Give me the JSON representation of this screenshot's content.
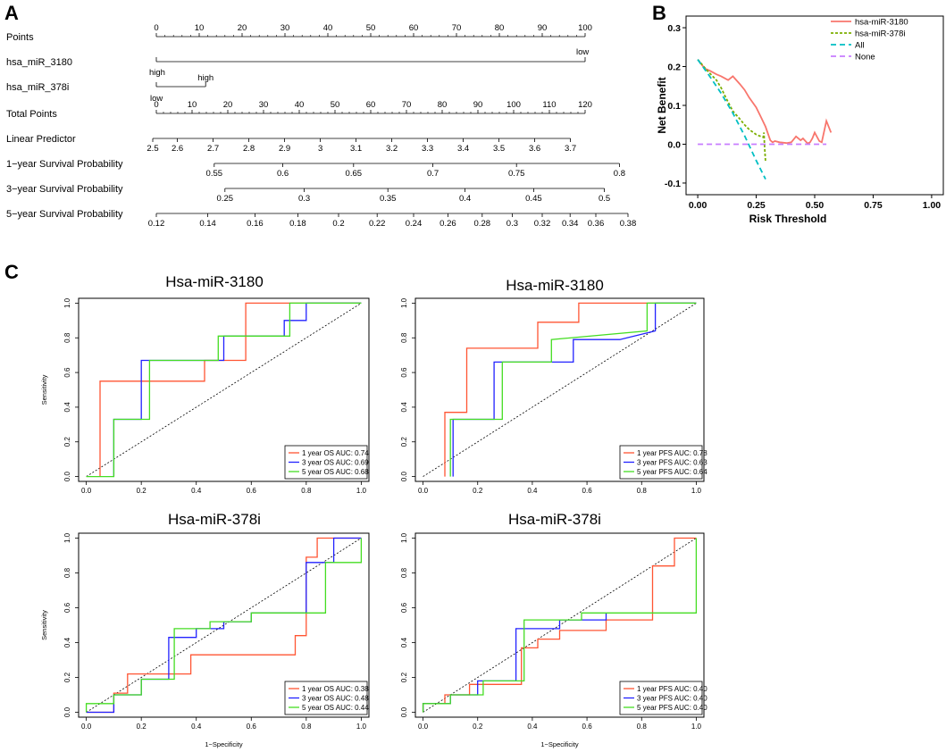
{
  "panels": {
    "a": "A",
    "b": "B",
    "c": "C"
  },
  "chart_data": [
    {
      "type": "nomogram",
      "panel": "A",
      "rows": [
        {
          "label": "Points",
          "min": 0,
          "max": 100,
          "ticks": [
            {
              "v": 0,
              "t": "0"
            },
            {
              "v": 10,
              "t": "10"
            },
            {
              "v": 20,
              "t": "20"
            },
            {
              "v": 30,
              "t": "30"
            },
            {
              "v": 40,
              "t": "40"
            },
            {
              "v": 50,
              "t": "50"
            },
            {
              "v": 60,
              "t": "60"
            },
            {
              "v": 70,
              "t": "70"
            },
            {
              "v": 80,
              "t": "80"
            },
            {
              "v": 90,
              "t": "90"
            },
            {
              "v": 100,
              "t": "100"
            }
          ]
        },
        {
          "label": "hsa_miR_3180",
          "type": "factor",
          "levels": [
            {
              "v": 0,
              "t": "high"
            },
            {
              "v": 100,
              "t": "low"
            }
          ]
        },
        {
          "label": "hsa_miR_378i",
          "type": "factor",
          "levels": [
            {
              "v": 0,
              "t": "low"
            },
            {
              "v": 11.5,
              "t": "high"
            }
          ]
        },
        {
          "label": "Total Points",
          "min": 0,
          "max": 120,
          "ticks": [
            {
              "v": 0,
              "t": "0"
            },
            {
              "v": 10,
              "t": "10"
            },
            {
              "v": 20,
              "t": "20"
            },
            {
              "v": 30,
              "t": "30"
            },
            {
              "v": 40,
              "t": "40"
            },
            {
              "v": 50,
              "t": "50"
            },
            {
              "v": 60,
              "t": "60"
            },
            {
              "v": 70,
              "t": "70"
            },
            {
              "v": 80,
              "t": "80"
            },
            {
              "v": 90,
              "t": "90"
            },
            {
              "v": 100,
              "t": "100"
            },
            {
              "v": 110,
              "t": "110"
            },
            {
              "v": 120,
              "t": "120"
            }
          ]
        },
        {
          "label": "Linear Predictor",
          "ticks": [
            {
              "v": -1,
              "t": "2.5"
            },
            {
              "v": 5.9,
              "t": "2.6"
            },
            {
              "v": 15.9,
              "t": "2.7"
            },
            {
              "v": 25.9,
              "t": "2.8"
            },
            {
              "v": 35.9,
              "t": "2.9"
            },
            {
              "v": 45.9,
              "t": "3"
            },
            {
              "v": 55.9,
              "t": "3.1"
            },
            {
              "v": 65.9,
              "t": "3.2"
            },
            {
              "v": 75.9,
              "t": "3.3"
            },
            {
              "v": 85.9,
              "t": "3.4"
            },
            {
              "v": 95.9,
              "t": "3.5"
            },
            {
              "v": 105.9,
              "t": "3.6"
            },
            {
              "v": 115.9,
              "t": "3.7"
            }
          ]
        },
        {
          "label": "1−year Survival Probability",
          "ticks": [
            {
              "v": 13.5,
              "t": "0.55"
            },
            {
              "v": 29.5,
              "t": "0.6"
            },
            {
              "v": 46,
              "t": "0.65"
            },
            {
              "v": 64.5,
              "t": "0.7"
            },
            {
              "v": 84,
              "t": "0.75"
            },
            {
              "v": 108,
              "t": "0.8"
            }
          ]
        },
        {
          "label": "3−year Survival Probability",
          "ticks": [
            {
              "v": 16,
              "t": "0.25"
            },
            {
              "v": 34.5,
              "t": "0.3"
            },
            {
              "v": 54,
              "t": "0.35"
            },
            {
              "v": 72,
              "t": "0.4"
            },
            {
              "v": 88,
              "t": "0.45"
            },
            {
              "v": 104.5,
              "t": "0.5"
            }
          ]
        },
        {
          "label": "5−year Survival Probability",
          "ticks": [
            {
              "v": 0,
              "t": "0.12"
            },
            {
              "v": 12,
              "t": "0.14"
            },
            {
              "v": 23,
              "t": "0.16"
            },
            {
              "v": 33,
              "t": "0.18"
            },
            {
              "v": 42.5,
              "t": "0.2"
            },
            {
              "v": 51.5,
              "t": "0.22"
            },
            {
              "v": 60,
              "t": "0.24"
            },
            {
              "v": 68,
              "t": "0.26"
            },
            {
              "v": 76,
              "t": "0.28"
            },
            {
              "v": 83,
              "t": "0.3"
            },
            {
              "v": 90,
              "t": "0.32"
            },
            {
              "v": 96.5,
              "t": "0.34"
            },
            {
              "v": 102.5,
              "t": "0.36"
            },
            {
              "v": 110,
              "t": "0.38"
            }
          ]
        }
      ]
    },
    {
      "type": "line",
      "panel": "B",
      "xlabel": "Risk Threshold",
      "ylabel": "Net Benefit",
      "xlim": [
        -0.05,
        1.05
      ],
      "ylim": [
        -0.13,
        0.33
      ],
      "xticks": [
        0.0,
        0.25,
        0.5,
        0.75,
        1.0
      ],
      "xtick_labels": [
        "0.00",
        "0.25",
        "0.50",
        "0.75",
        "1.00"
      ],
      "yticks": [
        -0.1,
        0.0,
        0.1,
        0.2,
        0.3
      ],
      "ytick_labels": [
        "-0.1",
        "0.0",
        "0.1",
        "0.2",
        "0.3"
      ],
      "legend": "top-right",
      "series": [
        {
          "name": "hsa-miR-3180",
          "color": "#f8766d",
          "dash": "solid",
          "x": [
            0.0,
            0.03,
            0.05,
            0.08,
            0.1,
            0.13,
            0.15,
            0.18,
            0.2,
            0.22,
            0.25,
            0.27,
            0.29,
            0.31,
            0.32,
            0.33,
            0.35,
            0.38,
            0.4,
            0.42,
            0.44,
            0.45,
            0.47,
            0.48,
            0.49,
            0.5,
            0.52,
            0.53,
            0.55,
            0.57
          ],
          "y": [
            0.218,
            0.195,
            0.19,
            0.18,
            0.175,
            0.165,
            0.175,
            0.155,
            0.14,
            0.12,
            0.095,
            0.07,
            0.045,
            0.01,
            0.005,
            0.008,
            0.005,
            0.003,
            0.005,
            0.02,
            0.01,
            0.015,
            0.002,
            0.005,
            0.015,
            0.03,
            0.008,
            0.005,
            0.06,
            0.03
          ]
        },
        {
          "name": "hsa-miR-378i",
          "color": "#7cae00",
          "dash": "dotted",
          "x": [
            0.0,
            0.04,
            0.08,
            0.1,
            0.12,
            0.15,
            0.18,
            0.2,
            0.22,
            0.25,
            0.27,
            0.28,
            0.283,
            0.286,
            0.29
          ],
          "y": [
            0.218,
            0.19,
            0.165,
            0.145,
            0.12,
            0.085,
            0.065,
            0.05,
            0.038,
            0.025,
            0.02,
            0.018,
            0.03,
            -0.01,
            -0.045
          ]
        },
        {
          "name": "All",
          "color": "#00bfc4",
          "dash": "dashed",
          "x": [
            0.0,
            0.05,
            0.1,
            0.15,
            0.2,
            0.25,
            0.29
          ],
          "y": [
            0.218,
            0.176,
            0.131,
            0.08,
            0.022,
            -0.042,
            -0.09
          ]
        },
        {
          "name": "None",
          "color": "#c77cff",
          "dash": "dashed",
          "x": [
            0.0,
            0.55
          ],
          "y": [
            0.0,
            0.0
          ]
        }
      ]
    },
    {
      "type": "roc",
      "panel": "C",
      "title": "Hsa-miR-3180",
      "xlabel": "",
      "ylabel": "Sensitivity",
      "xlim": [
        0,
        1
      ],
      "ylim": [
        0,
        1
      ],
      "ticks": [
        "0.0",
        "0.2",
        "0.4",
        "0.6",
        "0.8",
        "1.0"
      ],
      "legend": "bottom-right",
      "series": [
        {
          "name": "1 year OS AUC: 0.74",
          "color": "#ff5533",
          "x": [
            0.05,
            0.05,
            0.43,
            0.43,
            0.58,
            0.58,
            0.67,
            0.67,
            1.0
          ],
          "y": [
            0.0,
            0.55,
            0.55,
            0.67,
            0.67,
            1.0,
            1.0,
            1.0,
            1.0
          ]
        },
        {
          "name": "3 year OS AUC: 0.69",
          "color": "#2222ff",
          "x": [
            0.1,
            0.1,
            0.2,
            0.2,
            0.5,
            0.5,
            0.72,
            0.72,
            0.8,
            0.8,
            1.0
          ],
          "y": [
            0.0,
            0.33,
            0.33,
            0.67,
            0.67,
            0.81,
            0.81,
            0.9,
            0.9,
            1.0,
            1.0
          ]
        },
        {
          "name": "5 year OS AUC: 0.68",
          "color": "#44dd22",
          "x": [
            0.0,
            0.1,
            0.1,
            0.23,
            0.23,
            0.48,
            0.48,
            0.74,
            0.74,
            1.0
          ],
          "y": [
            0.0,
            0.0,
            0.33,
            0.33,
            0.67,
            0.67,
            0.81,
            0.81,
            1.0,
            1.0
          ]
        }
      ]
    },
    {
      "type": "roc",
      "panel": "C",
      "title": "Hsa-miR-3180",
      "xlabel": "",
      "ylabel": "",
      "xlim": [
        0,
        1
      ],
      "ylim": [
        0,
        1
      ],
      "ticks": [
        "0.0",
        "0.2",
        "0.4",
        "0.6",
        "0.8",
        "1.0"
      ],
      "legend": "bottom-right",
      "series": [
        {
          "name": "1 year PFS AUC: 0.78",
          "color": "#ff5533",
          "x": [
            0.08,
            0.08,
            0.16,
            0.16,
            0.42,
            0.42,
            0.57,
            0.57,
            1.0
          ],
          "y": [
            0.0,
            0.37,
            0.37,
            0.74,
            0.74,
            0.89,
            0.89,
            1.0,
            1.0
          ]
        },
        {
          "name": "3 year PFS AUC: 0.63",
          "color": "#2222ff",
          "x": [
            0.11,
            0.11,
            0.26,
            0.26,
            0.55,
            0.55,
            0.72,
            0.85,
            0.85,
            1.0
          ],
          "y": [
            0.0,
            0.33,
            0.33,
            0.66,
            0.66,
            0.79,
            0.79,
            0.84,
            1.0,
            1.0
          ]
        },
        {
          "name": "5 year PFS AUC: 0.64",
          "color": "#44dd22",
          "x": [
            0.1,
            0.1,
            0.29,
            0.29,
            0.47,
            0.47,
            0.82,
            0.82,
            1.0
          ],
          "y": [
            0.0,
            0.33,
            0.33,
            0.66,
            0.66,
            0.79,
            0.84,
            1.0,
            1.0
          ]
        }
      ]
    },
    {
      "type": "roc",
      "panel": "C",
      "title": "Hsa-miR-378i",
      "xlabel": "1−Specificity",
      "ylabel": "Sensitivity",
      "xlim": [
        0,
        1
      ],
      "ylim": [
        0,
        1
      ],
      "ticks": [
        "0.0",
        "0.2",
        "0.4",
        "0.6",
        "0.8",
        "1.0"
      ],
      "legend": "bottom-right",
      "series": [
        {
          "name": "1 year OS AUC: 0.38",
          "color": "#ff5533",
          "x": [
            0.0,
            0.1,
            0.1,
            0.15,
            0.15,
            0.38,
            0.38,
            0.76,
            0.76,
            0.8,
            0.8,
            0.84,
            0.84,
            1.0
          ],
          "y": [
            0.0,
            0.0,
            0.11,
            0.11,
            0.22,
            0.22,
            0.33,
            0.33,
            0.44,
            0.44,
            0.89,
            0.89,
            1.0,
            1.0
          ]
        },
        {
          "name": "3 year OS AUC: 0.48",
          "color": "#2222ff",
          "x": [
            0.0,
            0.1,
            0.1,
            0.2,
            0.2,
            0.3,
            0.3,
            0.4,
            0.4,
            0.5,
            0.5,
            0.6,
            0.6,
            0.8,
            0.8,
            0.9,
            0.9,
            1.0
          ],
          "y": [
            0.0,
            0.0,
            0.1,
            0.1,
            0.19,
            0.19,
            0.43,
            0.43,
            0.48,
            0.48,
            0.52,
            0.52,
            0.57,
            0.57,
            0.86,
            0.86,
            1.0,
            1.0
          ]
        },
        {
          "name": "5 year OS AUC: 0.44",
          "color": "#44dd22",
          "x": [
            0.0,
            0.0,
            0.1,
            0.1,
            0.2,
            0.2,
            0.32,
            0.32,
            0.45,
            0.45,
            0.6,
            0.6,
            0.87,
            0.87,
            1.0,
            1.0
          ],
          "y": [
            0.0,
            0.05,
            0.05,
            0.1,
            0.1,
            0.19,
            0.19,
            0.48,
            0.48,
            0.52,
            0.52,
            0.57,
            0.57,
            0.86,
            0.86,
            1.0
          ]
        }
      ]
    },
    {
      "type": "roc",
      "panel": "C",
      "title": "Hsa-miR-378i",
      "xlabel": "1−Specificity",
      "ylabel": "",
      "xlim": [
        0,
        1
      ],
      "ylim": [
        0,
        1
      ],
      "ticks": [
        "0.0",
        "0.2",
        "0.4",
        "0.6",
        "0.8",
        "1.0"
      ],
      "legend": "bottom-right",
      "series": [
        {
          "name": "1 year PFS AUC: 0.40",
          "color": "#ff5533",
          "x": [
            0.0,
            0.0,
            0.08,
            0.08,
            0.17,
            0.17,
            0.36,
            0.36,
            0.42,
            0.42,
            0.5,
            0.5,
            0.67,
            0.67,
            0.84,
            0.84,
            0.92,
            0.92,
            1.0
          ],
          "y": [
            0.0,
            0.05,
            0.05,
            0.1,
            0.1,
            0.16,
            0.16,
            0.37,
            0.37,
            0.42,
            0.42,
            0.47,
            0.47,
            0.53,
            0.53,
            0.84,
            0.84,
            1.0,
            1.0
          ]
        },
        {
          "name": "3 year PFS AUC: 0.40",
          "color": "#2222ff",
          "x": [
            0.0,
            0.0,
            0.1,
            0.1,
            0.2,
            0.2,
            0.34,
            0.34,
            0.5,
            0.5,
            0.67,
            0.67
          ],
          "y": [
            0.0,
            0.05,
            0.05,
            0.1,
            0.1,
            0.18,
            0.18,
            0.48,
            0.48,
            0.53,
            0.53,
            0.57
          ]
        },
        {
          "name": "5 year PFS AUC: 0.40",
          "color": "#44dd22",
          "x": [
            0.0,
            0.0,
            0.1,
            0.1,
            0.22,
            0.22,
            0.37,
            0.37,
            0.58,
            0.58,
            1.0,
            1.0
          ],
          "y": [
            0.0,
            0.05,
            0.05,
            0.1,
            0.1,
            0.18,
            0.18,
            0.53,
            0.53,
            0.57,
            0.57,
            1.0
          ]
        }
      ]
    }
  ]
}
